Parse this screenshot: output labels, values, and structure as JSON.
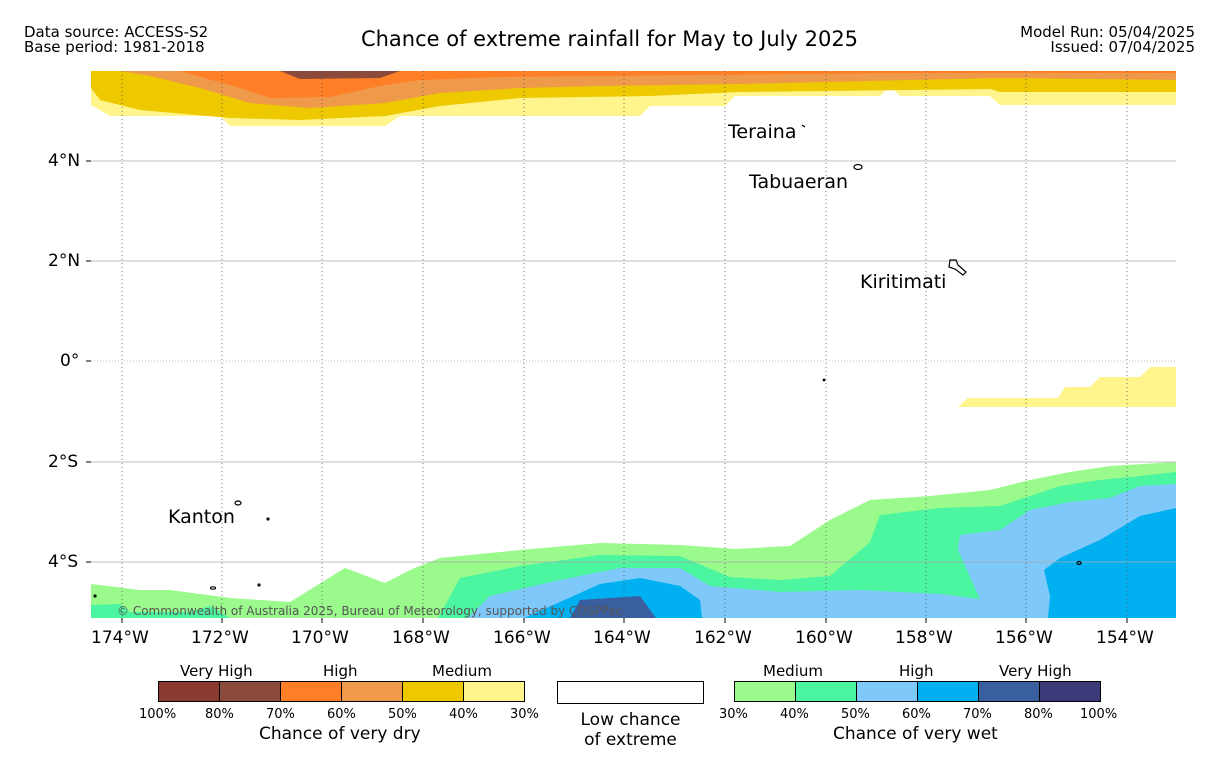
{
  "header": {
    "data_source": "Data source: ACCESS-S2",
    "base_period": "Base period: 1981-2018",
    "title": "Chance of extreme rainfall for May to July 2025",
    "model_run": "Model Run: 05/04/2025",
    "issued": "Issued: 07/04/2025"
  },
  "map": {
    "lon_labels": [
      "174°W",
      "172°W",
      "170°W",
      "168°W",
      "166°W",
      "164°W",
      "162°W",
      "160°W",
      "158°W",
      "156°W",
      "154°W"
    ],
    "lat_labels": [
      "4°N",
      "2°N",
      "0°",
      "2°S",
      "4°S"
    ],
    "places": [
      "Teraina",
      "Tabuaeran",
      "Kiritimati",
      "Kanton"
    ],
    "copyright": "© Commonwealth of Australia 2025, Bureau of Meteorology, supported by COSPPac"
  },
  "legend": {
    "dry": {
      "headings": [
        "Very High",
        "High",
        "Medium"
      ],
      "colors": [
        "#8b3a2f",
        "#8b4a3a",
        "#ff7f27",
        "#ee9a4a",
        "#eec900",
        "#fff58c"
      ],
      "percents": [
        "100%",
        "80%",
        "70%",
        "60%",
        "50%",
        "40%",
        "30%"
      ],
      "title": "Chance of very dry"
    },
    "low": {
      "line1": "Low chance",
      "line2": "of extreme"
    },
    "wet": {
      "headings": [
        "Medium",
        "High",
        "Very High"
      ],
      "colors": [
        "#9afa8c",
        "#4cf5a0",
        "#7ec8fa",
        "#00b0f0",
        "#3a5fa0",
        "#3c3a78"
      ],
      "percents": [
        "30%",
        "40%",
        "50%",
        "60%",
        "70%",
        "80%",
        "100%"
      ],
      "title": "Chance of very wet"
    }
  }
}
